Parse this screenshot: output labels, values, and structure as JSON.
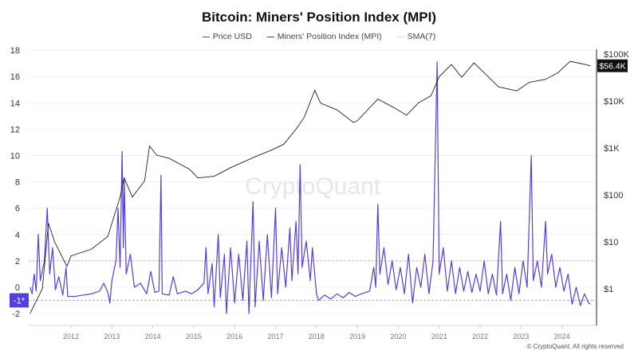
{
  "chart_data": {
    "type": "line",
    "title": "Bitcoin: Miners' Position Index (MPI)",
    "legend_placement": "top",
    "grid": true,
    "left_axis": {
      "ticks": [
        18,
        16,
        14,
        12,
        10,
        8,
        6,
        4,
        2,
        0,
        -1,
        -2
      ],
      "tick_labels": [
        "18",
        "16",
        "14",
        "12",
        "10",
        "8",
        "6",
        "4",
        "2",
        "0",
        "-1*",
        "-2"
      ],
      "ylim": [
        -3,
        18.2
      ],
      "highlight_label": "-1*"
    },
    "right_axis": {
      "scale": "log",
      "ticks": [
        1,
        10,
        100,
        1000,
        10000,
        100000
      ],
      "tick_labels": [
        "$1",
        "$10",
        "$100",
        "$1K",
        "$10K",
        "$100K"
      ],
      "current_label": "$56.4K",
      "current_value": 56400
    },
    "x_axis": {
      "tick_labels": [
        "2012",
        "2013",
        "2014",
        "2015",
        "2016",
        "2017",
        "2018",
        "2019",
        "2020",
        "2021",
        "2022",
        "2023",
        "2024"
      ],
      "xlim": [
        2011.0,
        2024.72
      ]
    },
    "reference_lines": [
      {
        "value": 2,
        "color": "#f4a3a3"
      },
      {
        "value": -1,
        "color": "#7fd35f"
      }
    ],
    "series": [
      {
        "name": "Price USD",
        "axis": "right",
        "color": "#222222",
        "points": [
          [
            2011.0,
            0.3
          ],
          [
            2011.3,
            1
          ],
          [
            2011.45,
            25
          ],
          [
            2011.6,
            10
          ],
          [
            2011.9,
            3
          ],
          [
            2012.0,
            5
          ],
          [
            2012.5,
            7
          ],
          [
            2012.9,
            13
          ],
          [
            2013.2,
            90
          ],
          [
            2013.3,
            230
          ],
          [
            2013.5,
            90
          ],
          [
            2013.8,
            200
          ],
          [
            2013.92,
            1100
          ],
          [
            2014.1,
            700
          ],
          [
            2014.4,
            600
          ],
          [
            2014.9,
            350
          ],
          [
            2015.1,
            230
          ],
          [
            2015.5,
            250
          ],
          [
            2015.9,
            380
          ],
          [
            2016.5,
            650
          ],
          [
            2016.9,
            900
          ],
          [
            2017.2,
            1200
          ],
          [
            2017.5,
            2500
          ],
          [
            2017.7,
            4500
          ],
          [
            2017.96,
            17000
          ],
          [
            2018.1,
            9000
          ],
          [
            2018.5,
            6500
          ],
          [
            2018.9,
            3500
          ],
          [
            2019.0,
            3800
          ],
          [
            2019.5,
            11000
          ],
          [
            2019.9,
            7200
          ],
          [
            2020.2,
            5000
          ],
          [
            2020.5,
            9200
          ],
          [
            2020.8,
            13000
          ],
          [
            2021.0,
            33000
          ],
          [
            2021.3,
            60000
          ],
          [
            2021.55,
            32000
          ],
          [
            2021.85,
            65000
          ],
          [
            2022.1,
            40000
          ],
          [
            2022.45,
            20000
          ],
          [
            2022.9,
            16500
          ],
          [
            2023.2,
            25000
          ],
          [
            2023.6,
            29000
          ],
          [
            2023.9,
            40000
          ],
          [
            2024.2,
            70000
          ],
          [
            2024.5,
            62000
          ],
          [
            2024.7,
            56400
          ]
        ]
      },
      {
        "name": "Miners' Position Index (MPI)",
        "axis": "left",
        "color": "#5140e0",
        "points": [
          [
            2011.0,
            0
          ],
          [
            2011.05,
            -0.5
          ],
          [
            2011.1,
            1
          ],
          [
            2011.15,
            -0.3
          ],
          [
            2011.2,
            4
          ],
          [
            2011.25,
            0.5
          ],
          [
            2011.35,
            2
          ],
          [
            2011.42,
            6
          ],
          [
            2011.48,
            1
          ],
          [
            2011.55,
            3
          ],
          [
            2011.62,
            -0.2
          ],
          [
            2011.7,
            0.8
          ],
          [
            2011.8,
            -0.6
          ],
          [
            2011.88,
            1.5
          ],
          [
            2011.92,
            -0.7
          ],
          [
            2012.1,
            -0.7
          ],
          [
            2012.3,
            -0.6
          ],
          [
            2012.5,
            -0.5
          ],
          [
            2012.7,
            -0.3
          ],
          [
            2012.8,
            0.3
          ],
          [
            2012.9,
            -0.4
          ],
          [
            2012.95,
            -1.2
          ],
          [
            2013.0,
            0.5
          ],
          [
            2013.1,
            2
          ],
          [
            2013.15,
            6
          ],
          [
            2013.2,
            1.5
          ],
          [
            2013.25,
            10.3
          ],
          [
            2013.28,
            3
          ],
          [
            2013.3,
            8.3
          ],
          [
            2013.35,
            1
          ],
          [
            2013.45,
            2.5
          ],
          [
            2013.55,
            0
          ],
          [
            2013.7,
            0.3
          ],
          [
            2013.85,
            -0.5
          ],
          [
            2013.95,
            1.2
          ],
          [
            2014.05,
            -0.4
          ],
          [
            2014.15,
            -0.3
          ],
          [
            2014.2,
            8.5
          ],
          [
            2014.23,
            -0.5
          ],
          [
            2014.4,
            -0.6
          ],
          [
            2014.5,
            0.8
          ],
          [
            2014.6,
            -0.5
          ],
          [
            2014.8,
            -0.3
          ],
          [
            2014.95,
            -0.5
          ],
          [
            2015.1,
            -0.2
          ],
          [
            2015.25,
            0.3
          ],
          [
            2015.3,
            3
          ],
          [
            2015.35,
            -0.5
          ],
          [
            2015.45,
            1.8
          ],
          [
            2015.5,
            -1.5
          ],
          [
            2015.6,
            4
          ],
          [
            2015.65,
            -0.8
          ],
          [
            2015.75,
            2.5
          ],
          [
            2015.8,
            -2.0
          ],
          [
            2015.9,
            3
          ],
          [
            2016.0,
            -1.2
          ],
          [
            2016.1,
            2.5
          ],
          [
            2016.2,
            -1.0
          ],
          [
            2016.3,
            3.5
          ],
          [
            2016.35,
            -2.0
          ],
          [
            2016.45,
            6.5
          ],
          [
            2016.5,
            -1.5
          ],
          [
            2016.6,
            3.5
          ],
          [
            2016.7,
            -1.0
          ],
          [
            2016.8,
            4
          ],
          [
            2016.9,
            -0.8
          ],
          [
            2017.0,
            6
          ],
          [
            2017.05,
            -0.5
          ],
          [
            2017.15,
            3
          ],
          [
            2017.25,
            0
          ],
          [
            2017.35,
            4.5
          ],
          [
            2017.4,
            0.5
          ],
          [
            2017.5,
            5
          ],
          [
            2017.55,
            1
          ],
          [
            2017.6,
            9.3
          ],
          [
            2017.65,
            1.5
          ],
          [
            2017.75,
            3.5
          ],
          [
            2017.85,
            0.5
          ],
          [
            2017.9,
            3
          ],
          [
            2018.0,
            -0.5
          ],
          [
            2018.05,
            -1.0
          ],
          [
            2018.2,
            -0.6
          ],
          [
            2018.35,
            -0.9
          ],
          [
            2018.5,
            -0.5
          ],
          [
            2018.65,
            -0.8
          ],
          [
            2018.8,
            -0.4
          ],
          [
            2018.95,
            -0.7
          ],
          [
            2019.1,
            -0.5
          ],
          [
            2019.3,
            -0.3
          ],
          [
            2019.4,
            1.5
          ],
          [
            2019.45,
            0
          ],
          [
            2019.5,
            6.3
          ],
          [
            2019.55,
            1
          ],
          [
            2019.65,
            3
          ],
          [
            2019.75,
            0.2
          ],
          [
            2019.85,
            2
          ],
          [
            2019.95,
            -0.2
          ],
          [
            2020.05,
            1.5
          ],
          [
            2020.15,
            -0.5
          ],
          [
            2020.25,
            2.5
          ],
          [
            2020.35,
            -1.2
          ],
          [
            2020.45,
            1.5
          ],
          [
            2020.55,
            0
          ],
          [
            2020.65,
            2.5
          ],
          [
            2020.75,
            -0.5
          ],
          [
            2020.85,
            2
          ],
          [
            2020.95,
            17.1
          ],
          [
            2021.0,
            1
          ],
          [
            2021.1,
            3
          ],
          [
            2021.2,
            -0.3
          ],
          [
            2021.3,
            2
          ],
          [
            2021.4,
            -0.5
          ],
          [
            2021.5,
            1.5
          ],
          [
            2021.6,
            -0.3
          ],
          [
            2021.7,
            1.2
          ],
          [
            2021.8,
            -0.4
          ],
          [
            2021.9,
            1
          ],
          [
            2022.0,
            -0.3
          ],
          [
            2022.1,
            2
          ],
          [
            2022.2,
            -0.5
          ],
          [
            2022.3,
            1
          ],
          [
            2022.4,
            -0.6
          ],
          [
            2022.5,
            5
          ],
          [
            2022.55,
            -0.5
          ],
          [
            2022.65,
            1
          ],
          [
            2022.75,
            -1.0
          ],
          [
            2022.85,
            1.5
          ],
          [
            2022.95,
            -0.5
          ],
          [
            2023.05,
            2
          ],
          [
            2023.15,
            0
          ],
          [
            2023.25,
            10
          ],
          [
            2023.3,
            0.5
          ],
          [
            2023.4,
            2
          ],
          [
            2023.5,
            0
          ],
          [
            2023.6,
            5
          ],
          [
            2023.65,
            1
          ],
          [
            2023.75,
            2.5
          ],
          [
            2023.85,
            0
          ],
          [
            2023.95,
            1.5
          ],
          [
            2024.05,
            -0.3
          ],
          [
            2024.15,
            1
          ],
          [
            2024.25,
            -1.3
          ],
          [
            2024.35,
            0
          ],
          [
            2024.45,
            -1.4
          ],
          [
            2024.55,
            -0.5
          ],
          [
            2024.65,
            -1.2
          ],
          [
            2024.7,
            -1.3
          ]
        ]
      },
      {
        "name": "SMA(7)",
        "axis": "left",
        "color": "#d9d6f5"
      }
    ]
  },
  "watermark": "CryptoQuant",
  "copyright": "© CryptoQuant. All rights reserved"
}
